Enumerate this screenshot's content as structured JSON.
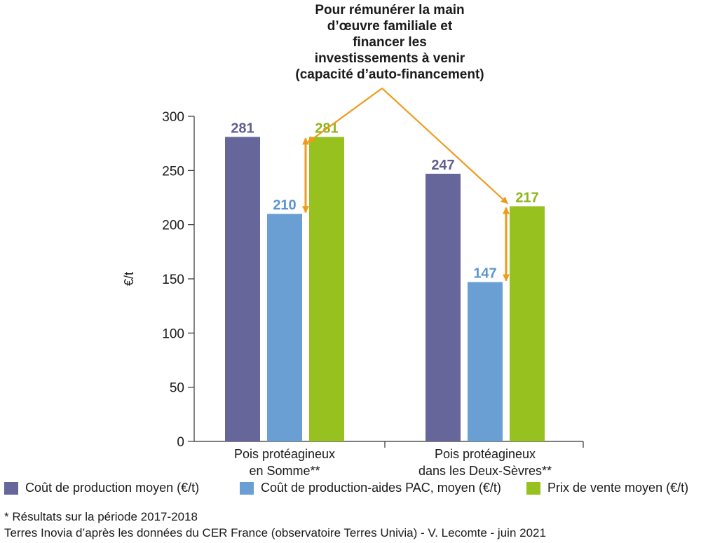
{
  "chart_data": {
    "type": "bar",
    "ylabel": "€/t",
    "ylim": [
      0,
      300
    ],
    "yticks": [
      0,
      50,
      100,
      150,
      200,
      250,
      300
    ],
    "grid": false,
    "categories": [
      [
        "Pois protéagineux",
        "en Somme**"
      ],
      [
        "Pois protéagineux",
        "dans les Deux-Sèvres**"
      ]
    ],
    "series": [
      {
        "name": "Coût de production moyen (€/t)",
        "color": "#67669b",
        "values": [
          281,
          247
        ]
      },
      {
        "name": "Coût de production-aides PAC, moyen (€/t)",
        "color": "#6a9fd3",
        "values": [
          210,
          147
        ]
      },
      {
        "name": "Prix de vente moyen (€/t)",
        "color": "#96c11f",
        "values": [
          281,
          217
        ]
      }
    ],
    "annotation": {
      "lines": [
        "Pour rémunérer la main",
        "d’œuvre familiale et",
        "financer les",
        "investissements à venir",
        "(capacité d’auto-financement)"
      ],
      "arrow_color": "#ef9a1b",
      "gap_arrows": [
        {
          "category": 0,
          "from": 210,
          "to": 281
        },
        {
          "category": 1,
          "from": 147,
          "to": 217
        }
      ]
    },
    "legend_position": "bottom"
  },
  "footnotes": {
    "note": "* Résultats sur la période 2017-2018",
    "source": "Terres Inovia d’après les données du CER France (observatoire Terres Univia) - V. Lecomte - juin 2021"
  }
}
